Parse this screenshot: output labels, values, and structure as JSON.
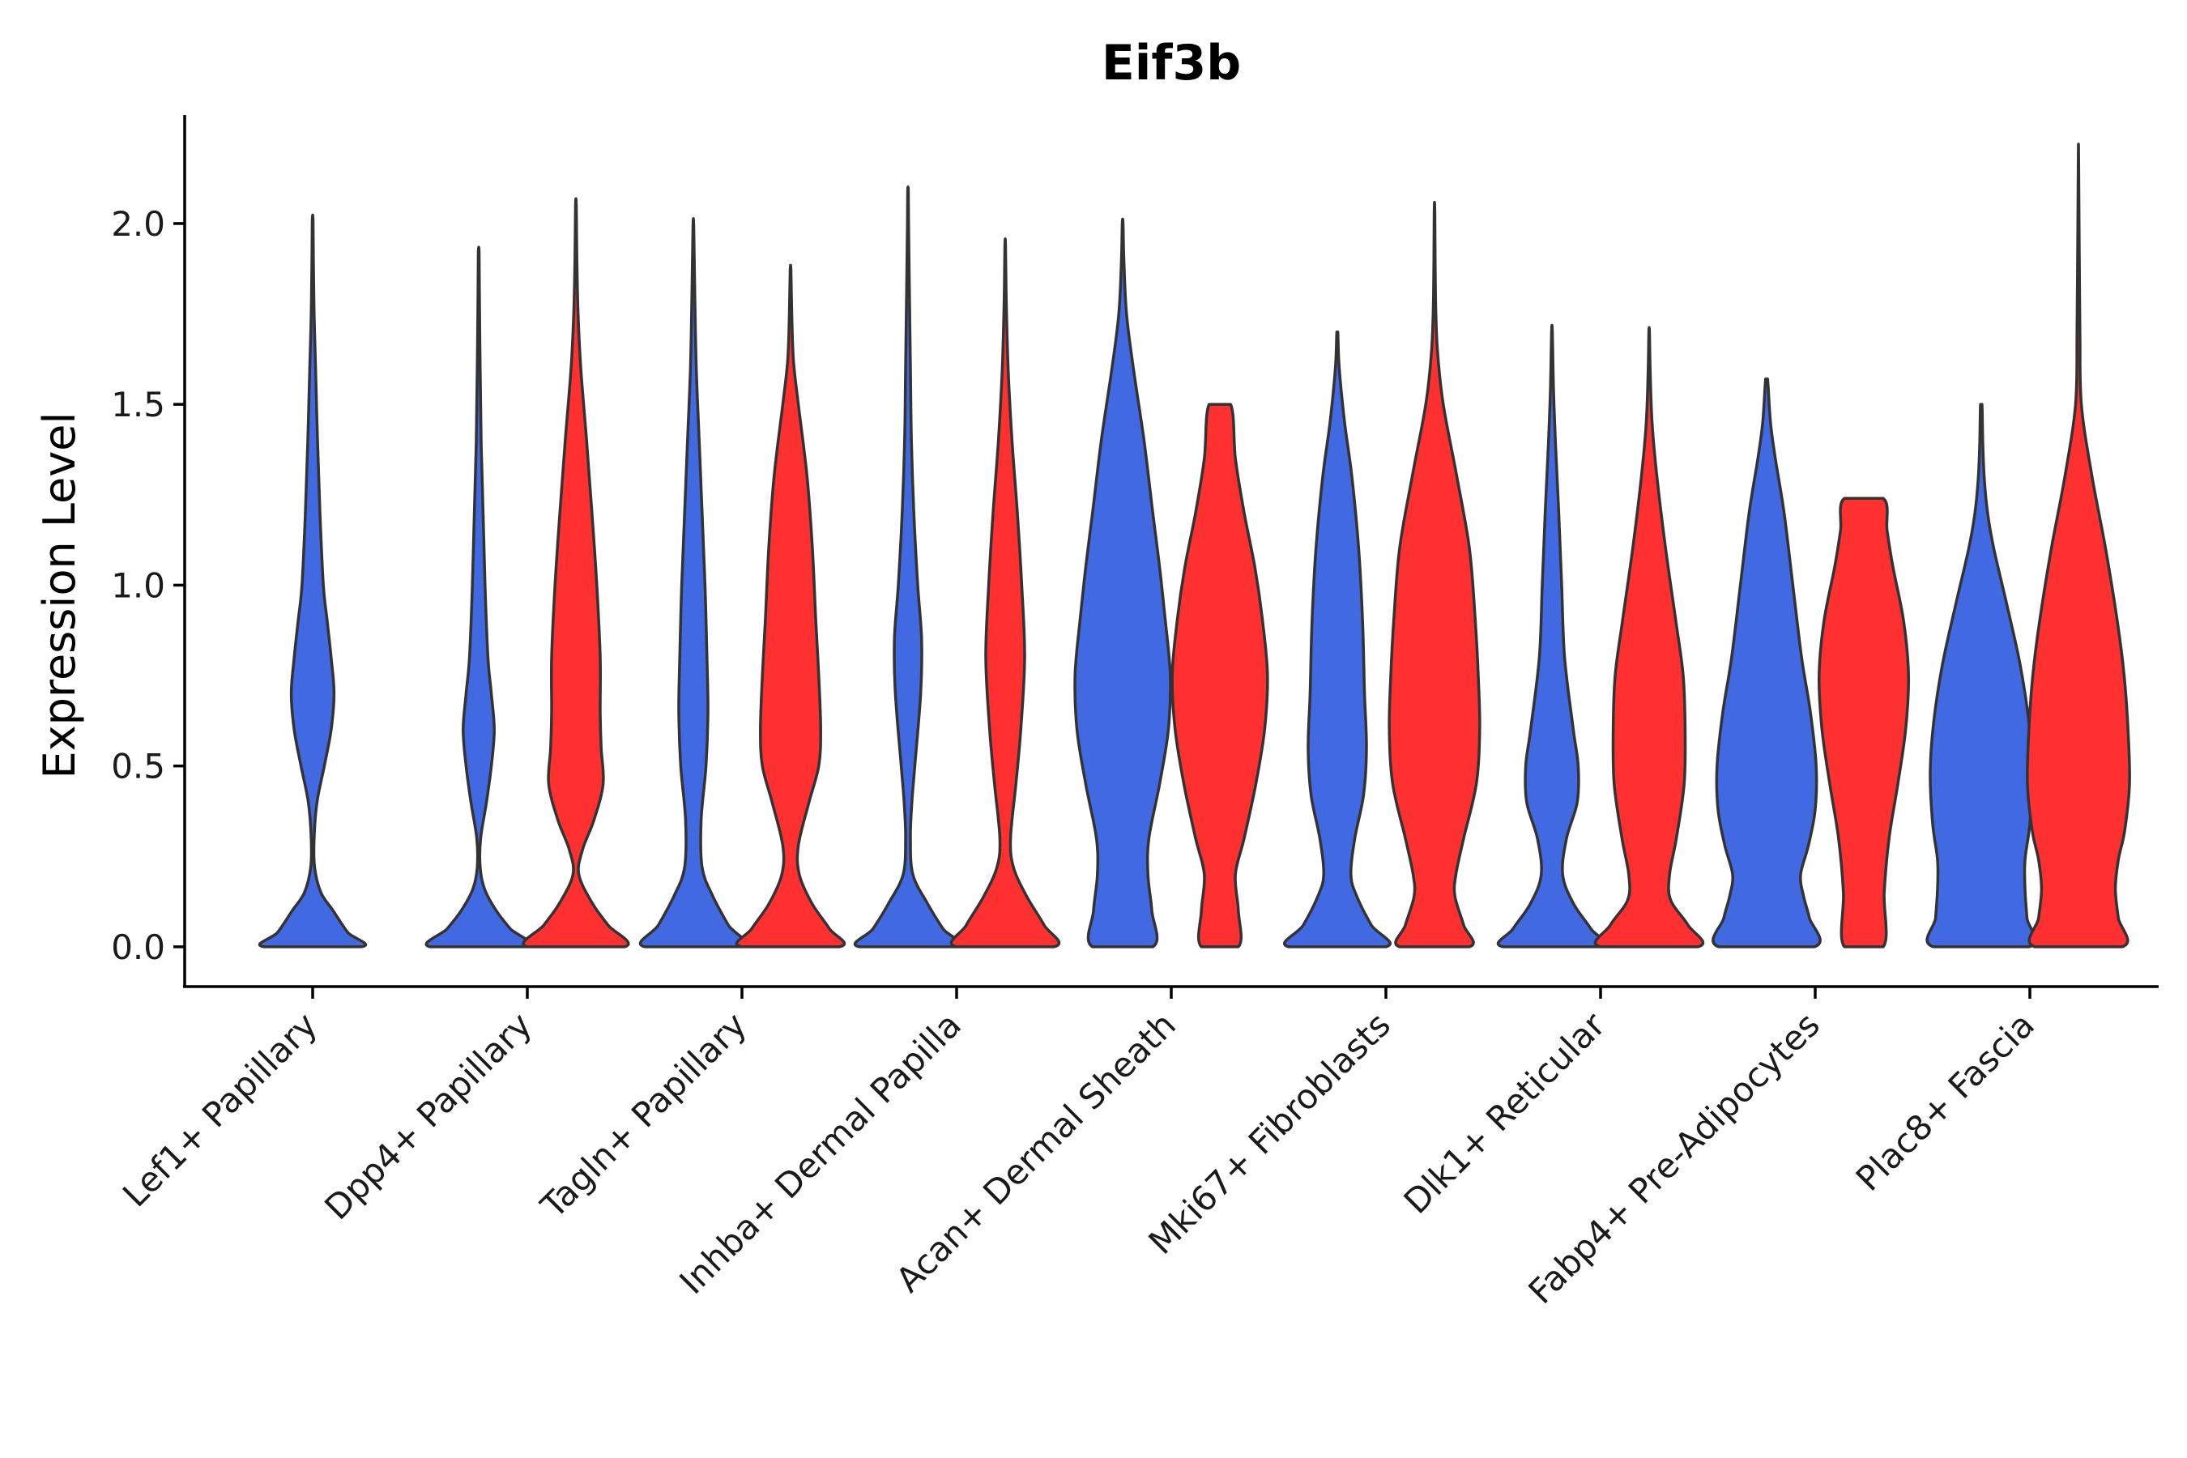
{
  "chart_data": {
    "type": "violin",
    "title": "Eif3b",
    "xlabel": "",
    "ylabel": "Expression Level",
    "ylim": [
      -0.11,
      2.3
    ],
    "yticks": [
      "0.0",
      "0.5",
      "1.0",
      "1.5",
      "2.0"
    ],
    "ytick_values": [
      0.0,
      0.5,
      1.0,
      1.5,
      2.0
    ],
    "grid": false,
    "legend": "none",
    "colors": {
      "group_a": "#4169E1",
      "group_b": "#FF3030",
      "outline": "#333333"
    },
    "categories": [
      "Lef1+ Papillary",
      "Dpp4+ Papillary",
      "Tagln+ Papillary",
      "Inhba+ Dermal Papilla",
      "Acan+ Dermal Sheath",
      "Mki67+ Fibroblasts",
      "Dlk1+ Reticular",
      "Fabp4+ Pre-Adipocytes",
      "Plac8+ Fascia"
    ],
    "violins": [
      {
        "category": "Lef1+ Papillary",
        "group": "blue",
        "max": 2.01,
        "profile": [
          [
            0.0,
            1.0
          ],
          [
            0.04,
            0.72
          ],
          [
            0.1,
            0.42
          ],
          [
            0.15,
            0.17
          ],
          [
            0.22,
            0.04
          ],
          [
            0.3,
            0.03
          ],
          [
            0.4,
            0.09
          ],
          [
            0.5,
            0.24
          ],
          [
            0.6,
            0.38
          ],
          [
            0.7,
            0.44
          ],
          [
            0.8,
            0.38
          ],
          [
            0.9,
            0.3
          ],
          [
            1.0,
            0.22
          ],
          [
            1.2,
            0.15
          ],
          [
            1.4,
            0.1
          ],
          [
            1.6,
            0.06
          ],
          [
            1.75,
            0.03
          ],
          [
            1.9,
            0.015
          ],
          [
            2.01,
            0.008
          ]
        ]
      },
      {
        "category": "Dpp4+ Papillary",
        "group": "blue",
        "max": 1.92,
        "profile": [
          [
            0.0,
            1.0
          ],
          [
            0.05,
            0.65
          ],
          [
            0.1,
            0.36
          ],
          [
            0.16,
            0.12
          ],
          [
            0.22,
            0.03
          ],
          [
            0.3,
            0.04
          ],
          [
            0.4,
            0.16
          ],
          [
            0.5,
            0.26
          ],
          [
            0.6,
            0.32
          ],
          [
            0.7,
            0.26
          ],
          [
            0.8,
            0.19
          ],
          [
            1.0,
            0.13
          ],
          [
            1.2,
            0.09
          ],
          [
            1.4,
            0.05
          ],
          [
            1.6,
            0.03
          ],
          [
            1.8,
            0.015
          ],
          [
            1.92,
            0.008
          ]
        ]
      },
      {
        "category": "Dpp4+ Papillary",
        "group": "red",
        "max": 2.05,
        "profile": [
          [
            0.0,
            1.0
          ],
          [
            0.06,
            0.66
          ],
          [
            0.12,
            0.34
          ],
          [
            0.2,
            0.06
          ],
          [
            0.27,
            0.14
          ],
          [
            0.35,
            0.37
          ],
          [
            0.45,
            0.56
          ],
          [
            0.55,
            0.52
          ],
          [
            0.65,
            0.5
          ],
          [
            0.8,
            0.5
          ],
          [
            1.0,
            0.43
          ],
          [
            1.2,
            0.33
          ],
          [
            1.4,
            0.22
          ],
          [
            1.6,
            0.1
          ],
          [
            1.75,
            0.045
          ],
          [
            1.9,
            0.02
          ],
          [
            2.05,
            0.008
          ]
        ]
      },
      {
        "category": "Tagln+ Papillary",
        "group": "blue",
        "max": 1.99,
        "profile": [
          [
            0.0,
            1.0
          ],
          [
            0.06,
            0.72
          ],
          [
            0.14,
            0.4
          ],
          [
            0.22,
            0.18
          ],
          [
            0.35,
            0.16
          ],
          [
            0.5,
            0.26
          ],
          [
            0.65,
            0.3
          ],
          [
            0.8,
            0.28
          ],
          [
            1.0,
            0.24
          ],
          [
            1.2,
            0.18
          ],
          [
            1.4,
            0.12
          ],
          [
            1.6,
            0.06
          ],
          [
            1.8,
            0.03
          ],
          [
            1.99,
            0.008
          ]
        ]
      },
      {
        "category": "Tagln+ Papillary",
        "group": "red",
        "max": 1.87,
        "profile": [
          [
            0.0,
            1.0
          ],
          [
            0.05,
            0.8
          ],
          [
            0.12,
            0.44
          ],
          [
            0.2,
            0.18
          ],
          [
            0.28,
            0.16
          ],
          [
            0.4,
            0.38
          ],
          [
            0.5,
            0.58
          ],
          [
            0.6,
            0.62
          ],
          [
            0.75,
            0.58
          ],
          [
            0.9,
            0.52
          ],
          [
            1.1,
            0.45
          ],
          [
            1.3,
            0.34
          ],
          [
            1.5,
            0.16
          ],
          [
            1.62,
            0.06
          ],
          [
            1.75,
            0.025
          ],
          [
            1.87,
            0.008
          ]
        ]
      },
      {
        "category": "Inhba+ Dermal Papilla",
        "group": "blue",
        "max": 2.09,
        "profile": [
          [
            0.0,
            1.0
          ],
          [
            0.05,
            0.72
          ],
          [
            0.12,
            0.4
          ],
          [
            0.2,
            0.1
          ],
          [
            0.3,
            0.05
          ],
          [
            0.4,
            0.08
          ],
          [
            0.5,
            0.14
          ],
          [
            0.7,
            0.26
          ],
          [
            0.85,
            0.28
          ],
          [
            1.0,
            0.2
          ],
          [
            1.2,
            0.12
          ],
          [
            1.4,
            0.07
          ],
          [
            1.6,
            0.05
          ],
          [
            1.8,
            0.03
          ],
          [
            2.0,
            0.012
          ],
          [
            2.09,
            0.006
          ]
        ]
      },
      {
        "category": "Inhba+ Dermal Papilla",
        "group": "red",
        "max": 1.94,
        "profile": [
          [
            0.0,
            1.0
          ],
          [
            0.06,
            0.8
          ],
          [
            0.14,
            0.44
          ],
          [
            0.22,
            0.17
          ],
          [
            0.3,
            0.11
          ],
          [
            0.45,
            0.22
          ],
          [
            0.6,
            0.32
          ],
          [
            0.8,
            0.4
          ],
          [
            1.0,
            0.34
          ],
          [
            1.2,
            0.25
          ],
          [
            1.4,
            0.14
          ],
          [
            1.6,
            0.06
          ],
          [
            1.8,
            0.02
          ],
          [
            1.94,
            0.006
          ]
        ]
      },
      {
        "category": "Acan+ Dermal Sheath",
        "group": "blue",
        "max": 2.0,
        "profile": [
          [
            0.0,
            0.62
          ],
          [
            0.1,
            0.6
          ],
          [
            0.2,
            0.52
          ],
          [
            0.3,
            0.54
          ],
          [
            0.45,
            0.76
          ],
          [
            0.6,
            0.94
          ],
          [
            0.75,
            0.98
          ],
          [
            0.9,
            0.88
          ],
          [
            1.05,
            0.76
          ],
          [
            1.2,
            0.62
          ],
          [
            1.4,
            0.44
          ],
          [
            1.6,
            0.22
          ],
          [
            1.75,
            0.08
          ],
          [
            1.9,
            0.025
          ],
          [
            2.0,
            0.008
          ]
        ]
      },
      {
        "category": "Acan+ Dermal Sheath",
        "group": "red",
        "max": 1.5,
        "profile": [
          [
            0.0,
            0.38
          ],
          [
            0.1,
            0.38
          ],
          [
            0.2,
            0.32
          ],
          [
            0.3,
            0.5
          ],
          [
            0.45,
            0.74
          ],
          [
            0.6,
            0.92
          ],
          [
            0.75,
            0.98
          ],
          [
            0.9,
            0.88
          ],
          [
            1.05,
            0.72
          ],
          [
            1.2,
            0.5
          ],
          [
            1.35,
            0.32
          ],
          [
            1.5,
            0.22
          ]
        ]
      },
      {
        "category": "Mki67+ Fibroblasts",
        "group": "blue",
        "max": 1.7,
        "profile": [
          [
            0.0,
            1.0
          ],
          [
            0.06,
            0.7
          ],
          [
            0.14,
            0.4
          ],
          [
            0.2,
            0.28
          ],
          [
            0.3,
            0.36
          ],
          [
            0.42,
            0.54
          ],
          [
            0.55,
            0.6
          ],
          [
            0.7,
            0.56
          ],
          [
            0.9,
            0.52
          ],
          [
            1.1,
            0.44
          ],
          [
            1.3,
            0.3
          ],
          [
            1.45,
            0.15
          ],
          [
            1.6,
            0.04
          ],
          [
            1.7,
            0.01
          ]
        ]
      },
      {
        "category": "Mki67+ Fibroblasts",
        "group": "red",
        "max": 2.03,
        "profile": [
          [
            0.0,
            0.72
          ],
          [
            0.06,
            0.6
          ],
          [
            0.14,
            0.42
          ],
          [
            0.2,
            0.44
          ],
          [
            0.3,
            0.6
          ],
          [
            0.45,
            0.86
          ],
          [
            0.6,
            0.93
          ],
          [
            0.75,
            0.9
          ],
          [
            0.9,
            0.84
          ],
          [
            1.1,
            0.72
          ],
          [
            1.3,
            0.46
          ],
          [
            1.5,
            0.18
          ],
          [
            1.65,
            0.06
          ],
          [
            1.8,
            0.02
          ],
          [
            2.03,
            0.006
          ]
        ]
      },
      {
        "category": "Dlk1+ Reticular",
        "group": "blue",
        "max": 1.7,
        "profile": [
          [
            0.0,
            1.0
          ],
          [
            0.05,
            0.8
          ],
          [
            0.12,
            0.44
          ],
          [
            0.2,
            0.22
          ],
          [
            0.3,
            0.3
          ],
          [
            0.4,
            0.52
          ],
          [
            0.5,
            0.54
          ],
          [
            0.6,
            0.44
          ],
          [
            0.8,
            0.26
          ],
          [
            1.0,
            0.2
          ],
          [
            1.2,
            0.14
          ],
          [
            1.4,
            0.07
          ],
          [
            1.55,
            0.03
          ],
          [
            1.7,
            0.008
          ]
        ]
      },
      {
        "category": "Dlk1+ Reticular",
        "group": "red",
        "max": 1.7,
        "profile": [
          [
            0.0,
            1.0
          ],
          [
            0.06,
            0.8
          ],
          [
            0.13,
            0.44
          ],
          [
            0.2,
            0.42
          ],
          [
            0.3,
            0.56
          ],
          [
            0.45,
            0.72
          ],
          [
            0.6,
            0.74
          ],
          [
            0.75,
            0.7
          ],
          [
            0.9,
            0.55
          ],
          [
            1.1,
            0.34
          ],
          [
            1.3,
            0.16
          ],
          [
            1.45,
            0.06
          ],
          [
            1.6,
            0.02
          ],
          [
            1.7,
            0.006
          ]
        ]
      },
      {
        "category": "Fabp4+ Pre-Adipocytes",
        "group": "blue",
        "max": 1.57,
        "profile": [
          [
            0.0,
            0.98
          ],
          [
            0.08,
            0.88
          ],
          [
            0.14,
            0.76
          ],
          [
            0.2,
            0.7
          ],
          [
            0.28,
            0.86
          ],
          [
            0.38,
            1.0
          ],
          [
            0.5,
            1.02
          ],
          [
            0.65,
            0.9
          ],
          [
            0.8,
            0.72
          ],
          [
            1.0,
            0.54
          ],
          [
            1.2,
            0.36
          ],
          [
            1.35,
            0.18
          ],
          [
            1.45,
            0.08
          ],
          [
            1.57,
            0.02
          ]
        ]
      },
      {
        "category": "Fabp4+ Pre-Adipocytes",
        "group": "red",
        "max": 1.24,
        "profile": [
          [
            0.0,
            0.4
          ],
          [
            0.15,
            0.42
          ],
          [
            0.3,
            0.52
          ],
          [
            0.45,
            0.7
          ],
          [
            0.6,
            0.86
          ],
          [
            0.75,
            0.92
          ],
          [
            0.9,
            0.82
          ],
          [
            1.05,
            0.6
          ],
          [
            1.15,
            0.48
          ],
          [
            1.24,
            0.4
          ]
        ]
      },
      {
        "category": "Plac8+ Fascia",
        "group": "blue",
        "max": 1.5,
        "profile": [
          [
            0.0,
            0.98
          ],
          [
            0.08,
            0.94
          ],
          [
            0.16,
            0.9
          ],
          [
            0.24,
            0.9
          ],
          [
            0.34,
            1.0
          ],
          [
            0.48,
            1.05
          ],
          [
            0.62,
            0.98
          ],
          [
            0.78,
            0.8
          ],
          [
            0.95,
            0.52
          ],
          [
            1.1,
            0.26
          ],
          [
            1.2,
            0.13
          ],
          [
            1.3,
            0.06
          ],
          [
            1.4,
            0.03
          ],
          [
            1.5,
            0.015
          ]
        ]
      },
      {
        "category": "Plac8+ Fascia",
        "group": "red",
        "max": 2.19,
        "profile": [
          [
            0.0,
            0.9
          ],
          [
            0.08,
            0.82
          ],
          [
            0.16,
            0.76
          ],
          [
            0.24,
            0.82
          ],
          [
            0.32,
            0.95
          ],
          [
            0.45,
            1.05
          ],
          [
            0.6,
            1.02
          ],
          [
            0.75,
            0.94
          ],
          [
            0.9,
            0.8
          ],
          [
            1.1,
            0.56
          ],
          [
            1.3,
            0.28
          ],
          [
            1.5,
            0.06
          ],
          [
            1.7,
            0.03
          ],
          [
            1.95,
            0.015
          ],
          [
            2.19,
            0.004
          ]
        ]
      }
    ]
  }
}
